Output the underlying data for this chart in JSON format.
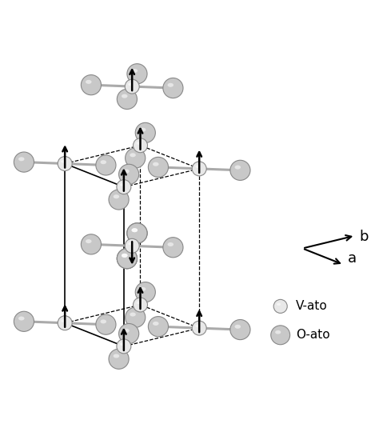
{
  "background_color": "#ffffff",
  "V_atom_color_face": "#e8e8e8",
  "V_atom_color_edge": "#888888",
  "O_atom_color_face": "#c8c8c8",
  "O_atom_color_edge": "#888888",
  "bond_color": "#aaaaaa",
  "cell_solid_color": "#000000",
  "cell_dash_color": "#000000",
  "arrow_color": "#000000",
  "legend_V_label": "V-ato",
  "legend_O_label": "O-ato",
  "legend_V_size": 10,
  "legend_O_size": 14,
  "figsize": [
    4.74,
    5.35
  ],
  "dpi": 100,
  "elev_deg": 18,
  "azim_deg": -52,
  "a": 1.0,
  "c_ratio": 1.75,
  "u_param": 0.305
}
